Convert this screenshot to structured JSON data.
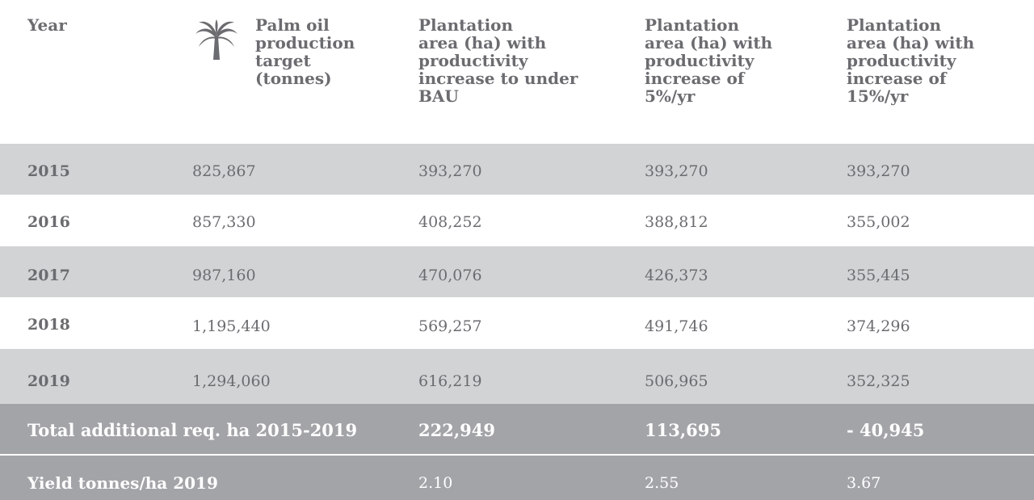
{
  "header": {
    "year": "Year",
    "palm_target": [
      "Palm oil",
      "production",
      "target",
      "(tonnes)"
    ],
    "col_bau": [
      "Plantation",
      "area (ha) with",
      "productivity",
      "increase to under",
      "BAU"
    ],
    "col_5": [
      "Plantation",
      "area (ha) with",
      "productivity",
      "increase of",
      "5%/yr"
    ],
    "col_15": [
      "Plantation",
      "area (ha) with",
      "productivity",
      "increase of",
      "15%/yr"
    ],
    "icon": "palm-tree-icon"
  },
  "rows": [
    {
      "year": "2015",
      "target": "825,867",
      "bau": "393,270",
      "p5": "393,270",
      "p15": "393,270"
    },
    {
      "year": "2016",
      "target": "857,330",
      "bau": "408,252",
      "p5": "388,812",
      "p15": "355,002"
    },
    {
      "year": "2017",
      "target": "987,160",
      "bau": "470,076",
      "p5": "426,373",
      "p15": "355,445"
    },
    {
      "year": "2018",
      "target": "1,195,440",
      "bau": "569,257",
      "p5": "491,746",
      "p15": "374,296"
    },
    {
      "year": "2019",
      "target": "1,294,060",
      "bau": "616,219",
      "p5": "506,965",
      "p15": "352,325"
    }
  ],
  "total": {
    "label": "Total additional req. ha 2015-2019",
    "bau": "222,949",
    "p5": "113,695",
    "p15": "- 40,945"
  },
  "yield": {
    "label": "Yield tonnes/ha 2019",
    "bau": "2.10",
    "p5": "2.55",
    "p15": "3.67"
  },
  "colors": {
    "shade": "#d2d3d5",
    "dark": "#a3a4a8",
    "text": "#6b6c70"
  }
}
